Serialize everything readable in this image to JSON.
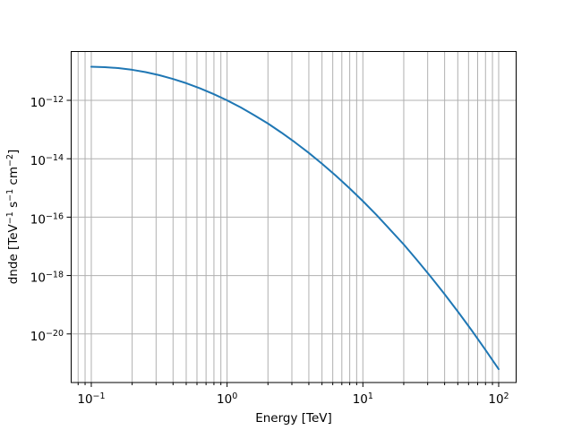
{
  "figure": {
    "background": "#ffffff",
    "frame_color": "#000000"
  },
  "chart_data": {
    "type": "line",
    "title": "",
    "xlabel": "Energy [TeV]",
    "ylabel": "dnde [TeV⁻¹ s⁻¹ cm⁻²]",
    "ylabel_parts": [
      {
        "t": "dnde [TeV"
      },
      {
        "sup": "−1"
      },
      {
        "t": " s"
      },
      {
        "sup": "−1"
      },
      {
        "t": " cm"
      },
      {
        "sup": "−2"
      },
      {
        "t": "]"
      }
    ],
    "x_scale": "log",
    "y_scale": "log",
    "xlim": [
      0.0711,
      134.5
    ],
    "ylim": [
      2.17e-22,
      4.7e-11
    ],
    "grid": {
      "show": true,
      "color": "#b0b0b0",
      "x_minor": true,
      "y_minor": false
    },
    "legend": "none",
    "line": {
      "color": "#1f77b4",
      "width": 2
    },
    "x_major_ticks": [
      {
        "value": 0.1,
        "base": "10",
        "sup": "−1"
      },
      {
        "value": 1,
        "base": "10",
        "sup": "0"
      },
      {
        "value": 10,
        "base": "10",
        "sup": "1"
      },
      {
        "value": 100,
        "base": "10",
        "sup": "2"
      }
    ],
    "x_minor_gridlines": [
      0.08,
      0.09,
      0.2,
      0.3,
      0.4,
      0.5,
      0.6,
      0.7,
      0.8,
      0.9,
      2,
      3,
      4,
      5,
      6,
      7,
      8,
      9,
      20,
      30,
      40,
      50,
      60,
      70,
      80,
      90
    ],
    "y_major_ticks": [
      {
        "value": 1e-12,
        "base": "10",
        "sup": "−12"
      },
      {
        "value": 1e-14,
        "base": "10",
        "sup": "−14"
      },
      {
        "value": 1e-16,
        "base": "10",
        "sup": "−16"
      },
      {
        "value": 1e-18,
        "base": "10",
        "sup": "−18"
      },
      {
        "value": 1e-20,
        "base": "10",
        "sup": "−20"
      }
    ],
    "series": [
      {
        "name": "dnde",
        "x": [
          0.1,
          0.126,
          0.158,
          0.2,
          0.251,
          0.316,
          0.398,
          0.501,
          0.631,
          0.794,
          1.0,
          1.26,
          1.58,
          2.0,
          2.51,
          3.16,
          3.98,
          5.01,
          6.31,
          7.94,
          10.0,
          12.6,
          15.8,
          20.0,
          25.1,
          31.6,
          39.8,
          50.1,
          63.1,
          79.4,
          100.0
        ],
        "y": [
          1.41e-11,
          1.37e-11,
          1.27e-11,
          1.11e-11,
          9.24e-12,
          7.28e-12,
          5.44e-12,
          3.86e-12,
          2.59e-12,
          1.65e-12,
          1e-12,
          5.73e-13,
          3.12e-13,
          1.61e-13,
          7.87e-14,
          3.65e-14,
          1.61e-14,
          6.7e-15,
          2.65e-15,
          9.94e-16,
          3.54e-16,
          1.19e-16,
          3.82e-17,
          1.16e-17,
          3.34e-18,
          9.11e-19,
          2.36e-19,
          5.79e-20,
          1.35e-20,
          2.98e-21,
          6.23e-22
        ]
      }
    ]
  }
}
